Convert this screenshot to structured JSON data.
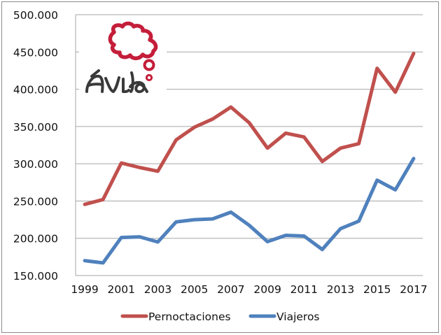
{
  "logo": {
    "text": "Ávila",
    "cloud_color": "#C41E3A",
    "text_color": "#3a3a3a"
  },
  "colors": {
    "pernoctaciones": "#C0504D",
    "viajeros": "#4F81BD",
    "grid": "#a6a6a6",
    "frame": "#8c8c8c"
  },
  "legend": {
    "items": [
      {
        "label": "Pernoctaciones",
        "color": "#C0504D"
      },
      {
        "label": "Viajeros",
        "color": "#4F81BD"
      }
    ],
    "position": "bottom"
  },
  "chart_data": {
    "type": "line",
    "title": "",
    "xlabel": "",
    "ylabel": "",
    "x": [
      1999,
      2000,
      2001,
      2002,
      2003,
      2004,
      2005,
      2006,
      2007,
      2008,
      2009,
      2010,
      2011,
      2012,
      2013,
      2014,
      2015,
      2016,
      2017
    ],
    "x_tick_labels": [
      "1999",
      "2001",
      "2003",
      "2005",
      "2007",
      "2009",
      "2011",
      "2013",
      "2015",
      "2017"
    ],
    "y_tick_labels": [
      "500.000",
      "450.000",
      "400.000",
      "350.000",
      "300.000",
      "250.000",
      "200.000",
      "150.000"
    ],
    "ylim": [
      150000,
      500000
    ],
    "y_step": 50000,
    "grid": true,
    "legend_position": "bottom",
    "series": [
      {
        "name": "Pernoctaciones",
        "color": "#C0504D",
        "values": [
          245500,
          252000,
          301000,
          295000,
          290000,
          332000,
          349000,
          360000,
          376000,
          355000,
          321000,
          341000,
          336000,
          303000,
          321000,
          327000,
          428000,
          396000,
          448000
        ]
      },
      {
        "name": "Viajeros",
        "color": "#4F81BD",
        "values": [
          170000,
          167000,
          201000,
          202000,
          195000,
          222000,
          225000,
          226000,
          235000,
          217500,
          195500,
          204000,
          203000,
          185000,
          213000,
          223000,
          278000,
          265000,
          307000
        ]
      }
    ]
  }
}
